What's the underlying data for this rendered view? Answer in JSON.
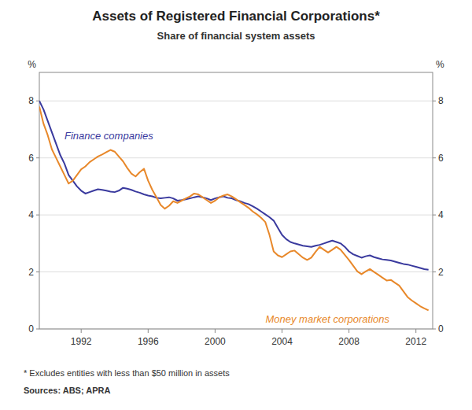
{
  "chart_data": {
    "type": "line",
    "title": "Assets of Registered Financial Corporations*",
    "subtitle": "Share of financial system assets",
    "ylabel": "%",
    "y2label": "%",
    "footnotes": [
      "*    Excludes entities with less than $50 million in assets",
      "Sources: ABS; APRA"
    ],
    "xlim": [
      1989.5,
      2013.0
    ],
    "ylim": [
      0,
      9
    ],
    "y2lim": [
      0,
      9
    ],
    "xticks": [
      1992,
      1996,
      2000,
      2004,
      2008,
      2012
    ],
    "yticks": [
      0,
      2,
      4,
      6,
      8
    ],
    "y2ticks": [
      0,
      2,
      4,
      6,
      8
    ],
    "grid": true,
    "x": [
      1989.5,
      1989.75,
      1990.0,
      1990.25,
      1990.5,
      1990.75,
      1991.0,
      1991.25,
      1991.5,
      1991.75,
      1992.0,
      1992.25,
      1992.5,
      1992.75,
      1993.0,
      1993.25,
      1993.5,
      1993.75,
      1994.0,
      1994.25,
      1994.5,
      1994.75,
      1995.0,
      1995.25,
      1995.5,
      1995.75,
      1996.0,
      1996.25,
      1996.5,
      1996.75,
      1997.0,
      1997.25,
      1997.5,
      1997.75,
      1998.0,
      1998.25,
      1998.5,
      1998.75,
      1999.0,
      1999.25,
      1999.5,
      1999.75,
      2000.0,
      2000.25,
      2000.5,
      2000.75,
      2001.0,
      2001.25,
      2001.5,
      2001.75,
      2002.0,
      2002.25,
      2002.5,
      2002.75,
      2003.0,
      2003.25,
      2003.5,
      2003.75,
      2004.0,
      2004.25,
      2004.5,
      2004.75,
      2005.0,
      2005.25,
      2005.5,
      2005.75,
      2006.0,
      2006.25,
      2006.5,
      2006.75,
      2007.0,
      2007.25,
      2007.5,
      2007.75,
      2008.0,
      2008.25,
      2008.5,
      2008.75,
      2009.0,
      2009.25,
      2009.5,
      2009.75,
      2010.0,
      2010.25,
      2010.5,
      2010.75,
      2011.0,
      2011.25,
      2011.5,
      2011.75,
      2012.0,
      2012.25,
      2012.5,
      2012.75
    ],
    "series": [
      {
        "name": "Finance companies",
        "color": "#3a3a9e",
        "values": [
          8.0,
          7.7,
          7.3,
          6.9,
          6.5,
          6.1,
          5.8,
          5.4,
          5.2,
          5.0,
          4.85,
          4.75,
          4.8,
          4.85,
          4.9,
          4.88,
          4.85,
          4.82,
          4.8,
          4.85,
          4.95,
          4.92,
          4.88,
          4.82,
          4.78,
          4.72,
          4.68,
          4.65,
          4.6,
          4.58,
          4.6,
          4.62,
          4.58,
          4.5,
          4.52,
          4.55,
          4.58,
          4.62,
          4.65,
          4.62,
          4.58,
          4.52,
          4.58,
          4.62,
          4.65,
          4.6,
          4.58,
          4.52,
          4.48,
          4.42,
          4.38,
          4.3,
          4.22,
          4.12,
          4.02,
          3.92,
          3.8,
          3.55,
          3.3,
          3.15,
          3.05,
          3.0,
          2.96,
          2.92,
          2.9,
          2.88,
          2.92,
          2.95,
          3.0,
          3.05,
          3.1,
          3.05,
          3.0,
          2.88,
          2.72,
          2.62,
          2.56,
          2.5,
          2.55,
          2.58,
          2.52,
          2.48,
          2.44,
          2.42,
          2.4,
          2.36,
          2.32,
          2.28,
          2.26,
          2.22,
          2.18,
          2.14,
          2.1,
          2.08
        ]
      },
      {
        "name": "Money market corporations",
        "color": "#e8882a",
        "values": [
          7.8,
          7.2,
          6.8,
          6.3,
          6.0,
          5.7,
          5.4,
          5.1,
          5.2,
          5.4,
          5.6,
          5.7,
          5.85,
          5.95,
          6.05,
          6.12,
          6.2,
          6.28,
          6.22,
          6.05,
          5.88,
          5.65,
          5.45,
          5.35,
          5.5,
          5.62,
          5.2,
          4.88,
          4.62,
          4.35,
          4.22,
          4.32,
          4.48,
          4.42,
          4.5,
          4.58,
          4.65,
          4.75,
          4.72,
          4.62,
          4.52,
          4.42,
          4.5,
          4.62,
          4.68,
          4.72,
          4.65,
          4.55,
          4.45,
          4.35,
          4.25,
          4.12,
          4.02,
          3.9,
          3.75,
          3.3,
          2.72,
          2.58,
          2.52,
          2.62,
          2.72,
          2.75,
          2.62,
          2.5,
          2.42,
          2.5,
          2.7,
          2.88,
          2.78,
          2.68,
          2.78,
          2.88,
          2.78,
          2.6,
          2.42,
          2.22,
          2.02,
          1.92,
          2.02,
          2.1,
          2.0,
          1.9,
          1.8,
          1.7,
          1.72,
          1.62,
          1.52,
          1.32,
          1.12,
          1.0,
          0.9,
          0.8,
          0.72,
          0.65
        ]
      }
    ]
  }
}
